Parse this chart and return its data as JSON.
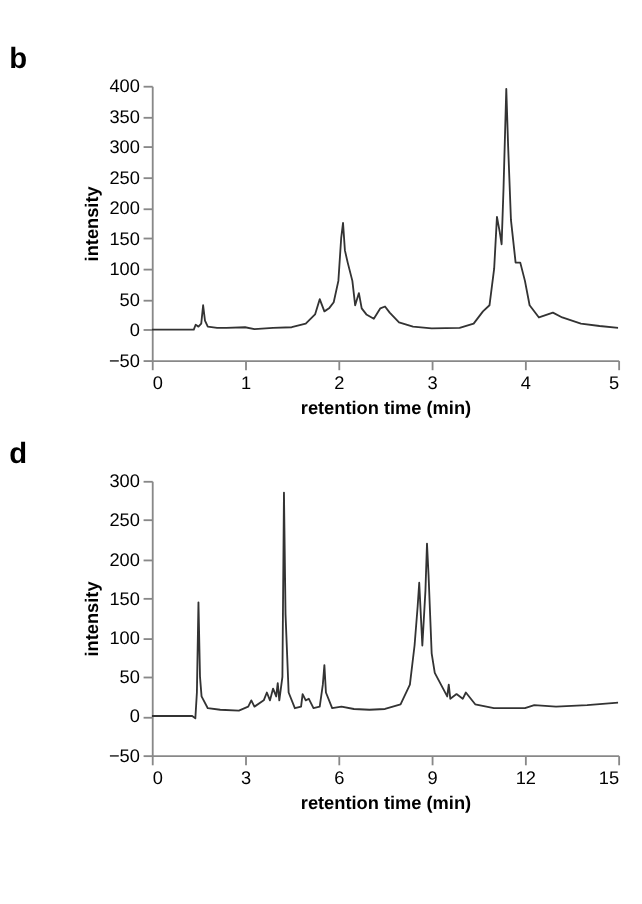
{
  "chart_data": [
    {
      "type": "line",
      "title": "b",
      "xlabel": "retention time (min)",
      "ylabel": "intensity",
      "xlim": [
        0,
        5
      ],
      "xticks": [
        0,
        1,
        2,
        3,
        4,
        5
      ],
      "ylim": [
        -50,
        400
      ],
      "yticks": [
        -50,
        0,
        50,
        100,
        150,
        200,
        250,
        300,
        350,
        400
      ],
      "grid": false,
      "series": [
        {
          "color": "#333333",
          "x": [
            0,
            0.45,
            0.47,
            0.5,
            0.53,
            0.55,
            0.57,
            0.6,
            0.7,
            0.8,
            1.0,
            1.1,
            1.3,
            1.5,
            1.65,
            1.75,
            1.8,
            1.85,
            1.9,
            1.95,
            2.0,
            2.03,
            2.05,
            2.07,
            2.1,
            2.15,
            2.18,
            2.22,
            2.25,
            2.3,
            2.38,
            2.45,
            2.5,
            2.55,
            2.65,
            2.8,
            3.0,
            3.3,
            3.45,
            3.55,
            3.62,
            3.67,
            3.7,
            3.73,
            3.75,
            3.77,
            3.8,
            3.82,
            3.85,
            3.9,
            3.95,
            4.0,
            4.05,
            4.15,
            4.3,
            4.4,
            4.6,
            4.8,
            5.0
          ],
          "values": [
            0,
            0,
            8,
            5,
            10,
            40,
            15,
            5,
            3,
            3,
            4,
            1,
            3,
            4,
            10,
            25,
            50,
            30,
            35,
            45,
            80,
            150,
            175,
            130,
            110,
            80,
            40,
            60,
            35,
            25,
            18,
            35,
            38,
            28,
            12,
            5,
            2,
            3,
            10,
            30,
            40,
            100,
            185,
            160,
            140,
            230,
            395,
            300,
            180,
            110,
            110,
            80,
            40,
            20,
            28,
            20,
            10,
            6,
            3
          ]
        }
      ]
    },
    {
      "type": "line",
      "title": "d",
      "xlabel": "retention time (min)",
      "ylabel": "intensity",
      "xlim": [
        0,
        15
      ],
      "xticks": [
        0,
        3,
        6,
        9,
        12,
        15
      ],
      "ylim": [
        -50,
        300
      ],
      "yticks": [
        -50,
        0,
        50,
        100,
        150,
        200,
        250,
        300
      ],
      "grid": false,
      "series": [
        {
          "color": "#333333",
          "x": [
            0,
            1.3,
            1.4,
            1.45,
            1.5,
            1.55,
            1.6,
            1.8,
            2.2,
            2.8,
            3.1,
            3.2,
            3.3,
            3.6,
            3.7,
            3.8,
            3.9,
            4.0,
            4.05,
            4.1,
            4.2,
            4.25,
            4.3,
            4.4,
            4.6,
            4.8,
            4.85,
            4.95,
            5.05,
            5.2,
            5.4,
            5.5,
            5.55,
            5.6,
            5.8,
            6.1,
            6.5,
            7.0,
            7.5,
            8.0,
            8.3,
            8.45,
            8.55,
            8.6,
            8.7,
            8.8,
            8.85,
            8.9,
            9.0,
            9.1,
            9.3,
            9.5,
            9.55,
            9.6,
            9.8,
            10.0,
            10.1,
            10.4,
            11,
            12,
            12.3,
            13,
            14,
            15
          ],
          "values": [
            0,
            0,
            -3,
            30,
            145,
            50,
            25,
            10,
            8,
            7,
            12,
            20,
            12,
            20,
            30,
            20,
            35,
            25,
            42,
            20,
            50,
            285,
            130,
            30,
            10,
            12,
            28,
            20,
            22,
            10,
            12,
            40,
            65,
            30,
            10,
            12,
            9,
            8,
            9,
            15,
            40,
            90,
            140,
            170,
            90,
            160,
            220,
            180,
            80,
            55,
            40,
            25,
            40,
            22,
            28,
            22,
            30,
            15,
            10,
            10,
            14,
            12,
            14,
            17
          ]
        }
      ]
    }
  ]
}
